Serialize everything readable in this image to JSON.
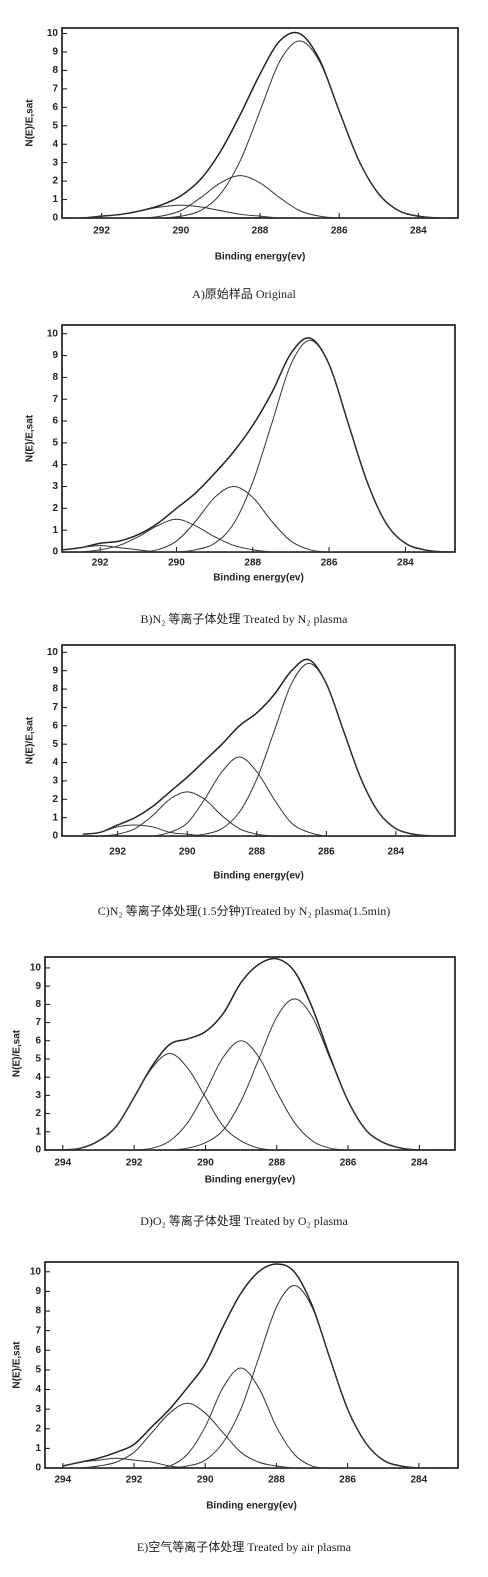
{
  "chart_data": [
    {
      "type": "line",
      "caption": "A)原始样品 Original",
      "xlabel": "Binding energy(ev)",
      "ylabel": "N(E)/E,sat",
      "xlim": [
        293,
        283
      ],
      "xticks": [
        292,
        290,
        288,
        286,
        284
      ],
      "ylim": [
        0,
        10.3
      ],
      "yticks": [
        0,
        1,
        2,
        3,
        4,
        5,
        6,
        7,
        8,
        9,
        10
      ],
      "x": [
        293,
        292.5,
        292,
        291.5,
        291,
        290.5,
        290,
        289.5,
        289,
        288.5,
        288,
        287.5,
        287,
        286.5,
        286,
        285.5,
        285,
        284.5,
        284,
        283.5,
        283
      ],
      "series": [
        {
          "color": "#222222",
          "values": [
            0,
            0,
            0.1,
            0.2,
            0.4,
            0.7,
            1.2,
            2.1,
            3.6,
            5.6,
            7.8,
            9.6,
            10.0,
            8.6,
            5.8,
            3.1,
            1.3,
            0.4,
            0.1,
            0,
            0
          ]
        },
        {
          "color": "#333333",
          "values": [
            0,
            0,
            0,
            0,
            0,
            0,
            0.1,
            0.4,
            1.3,
            3.1,
            5.8,
            8.5,
            9.6,
            8.5,
            5.8,
            3.1,
            1.3,
            0.4,
            0.1,
            0,
            0
          ]
        },
        {
          "color": "#333333",
          "values": [
            0,
            0,
            0,
            0,
            0,
            0.1,
            0.4,
            1.1,
            1.9,
            2.3,
            1.9,
            1.1,
            0.4,
            0.1,
            0,
            0,
            0,
            0,
            0,
            0,
            0
          ]
        },
        {
          "color": "#333333",
          "values": [
            0,
            0,
            0.1,
            0.2,
            0.4,
            0.6,
            0.7,
            0.6,
            0.4,
            0.2,
            0.1,
            0,
            0,
            0,
            0,
            0,
            0,
            0,
            0,
            0,
            0
          ]
        }
      ]
    },
    {
      "type": "line",
      "caption": "B)N₂ 等离子体处理 Treated by N₂ plasma",
      "xlabel": "Binding energy(ev)",
      "ylabel": "N(E)/E,sat",
      "xlim": [
        293,
        282.7
      ],
      "xticks": [
        292,
        290,
        288,
        286,
        284
      ],
      "ylim": [
        0,
        10.4
      ],
      "yticks": [
        0,
        1,
        2,
        3,
        4,
        5,
        6,
        7,
        8,
        9,
        10
      ],
      "x": [
        293,
        292.5,
        292,
        291.5,
        291,
        290.5,
        290,
        289.5,
        289,
        288.5,
        288,
        287.5,
        287,
        286.5,
        286,
        285.5,
        285,
        284.5,
        284,
        283.5,
        283
      ],
      "series": [
        {
          "color": "#222222",
          "values": [
            0.1,
            0.2,
            0.4,
            0.5,
            0.8,
            1.3,
            2.0,
            2.7,
            3.6,
            4.6,
            5.8,
            7.3,
            9.1,
            9.8,
            8.6,
            5.9,
            3.2,
            1.3,
            0.4,
            0.1,
            0
          ]
        },
        {
          "color": "#333333",
          "values": [
            0,
            0,
            0,
            0,
            0,
            0,
            0,
            0.1,
            0.4,
            1.3,
            3.2,
            5.9,
            8.6,
            9.7,
            8.6,
            5.9,
            3.2,
            1.3,
            0.4,
            0.1,
            0
          ]
        },
        {
          "color": "#333333",
          "values": [
            0,
            0,
            0,
            0,
            0,
            0.1,
            0.5,
            1.4,
            2.5,
            3.0,
            2.5,
            1.4,
            0.5,
            0.1,
            0,
            0,
            0,
            0,
            0,
            0,
            0
          ]
        },
        {
          "color": "#333333",
          "values": [
            0,
            0,
            0.1,
            0.3,
            0.7,
            1.2,
            1.5,
            1.2,
            0.7,
            0.3,
            0.1,
            0,
            0,
            0,
            0,
            0,
            0,
            0,
            0,
            0,
            0
          ]
        },
        {
          "color": "#333333",
          "values": [
            0.1,
            0.2,
            0.3,
            0.2,
            0.1,
            0,
            0,
            0,
            0,
            0,
            0,
            0,
            0,
            0,
            0,
            0,
            0,
            0,
            0,
            0,
            0
          ]
        }
      ]
    },
    {
      "type": "line",
      "caption": "C)N₂ 等离子体处理(1.5分钟)Treated by N₂ plasma(1.5min)",
      "xlabel": "Binding energy(ev)",
      "ylabel": "N(E)/E,sat",
      "xlim": [
        293.6,
        282.3
      ],
      "xticks": [
        292,
        290,
        288,
        286,
        284
      ],
      "ylim": [
        0,
        10.4
      ],
      "yticks": [
        0,
        1,
        2,
        3,
        4,
        5,
        6,
        7,
        8,
        9,
        10
      ],
      "x": [
        293,
        292.5,
        292,
        291.5,
        291,
        290.5,
        290,
        289.5,
        289,
        288.5,
        288,
        287.5,
        287,
        286.5,
        286,
        285.5,
        285,
        284.5,
        284,
        283.5,
        283
      ],
      "series": [
        {
          "color": "#222222",
          "values": [
            0.1,
            0.2,
            0.6,
            1.0,
            1.6,
            2.4,
            3.2,
            4.1,
            5.0,
            6.0,
            6.7,
            7.7,
            9.0,
            9.6,
            8.3,
            5.7,
            3.1,
            1.3,
            0.4,
            0.1,
            0
          ]
        },
        {
          "color": "#333333",
          "values": [
            0,
            0,
            0,
            0,
            0,
            0,
            0,
            0.1,
            0.4,
            1.3,
            3.1,
            5.7,
            8.3,
            9.4,
            8.3,
            5.7,
            3.1,
            1.3,
            0.4,
            0.1,
            0
          ]
        },
        {
          "color": "#333333",
          "values": [
            0,
            0,
            0,
            0,
            0,
            0.2,
            0.7,
            2.0,
            3.5,
            4.3,
            3.5,
            2.0,
            0.7,
            0.2,
            0,
            0,
            0,
            0,
            0,
            0,
            0
          ]
        },
        {
          "color": "#333333",
          "values": [
            0,
            0,
            0.1,
            0.4,
            1.1,
            2.0,
            2.4,
            2.0,
            1.1,
            0.4,
            0.1,
            0,
            0,
            0,
            0,
            0,
            0,
            0,
            0,
            0,
            0
          ]
        },
        {
          "color": "#333333",
          "values": [
            0.1,
            0.2,
            0.5,
            0.6,
            0.5,
            0.2,
            0.1,
            0,
            0,
            0,
            0,
            0,
            0,
            0,
            0,
            0,
            0,
            0,
            0,
            0,
            0
          ]
        }
      ]
    },
    {
      "type": "line",
      "caption": "D)O₂ 等离子体处理 Treated by O₂ plasma",
      "xlabel": "Binding energy(ev)",
      "ylabel": "N(E)/E,sat",
      "xlim": [
        294.5,
        283
      ],
      "xticks": [
        294,
        292,
        290,
        288,
        286,
        284
      ],
      "ylim": [
        0,
        10.6
      ],
      "yticks": [
        0,
        1,
        2,
        3,
        4,
        5,
        6,
        7,
        8,
        9,
        10
      ],
      "x": [
        294,
        293.5,
        293,
        292.5,
        292,
        291.5,
        291,
        290.5,
        290,
        289.5,
        289,
        288.5,
        288,
        287.5,
        287,
        286.5,
        286,
        285.5,
        285,
        284.5,
        284,
        283.5,
        283
      ],
      "series": [
        {
          "color": "#222222",
          "values": [
            0,
            0.1,
            0.5,
            1.3,
            2.9,
            4.6,
            5.8,
            6.1,
            6.5,
            7.5,
            9.2,
            10.2,
            10.5,
            9.8,
            7.8,
            5.1,
            2.7,
            1.1,
            0.4,
            0.1,
            0,
            0,
            0
          ]
        },
        {
          "color": "#333333",
          "values": [
            0,
            0,
            0,
            0,
            0,
            0,
            0,
            0.1,
            0.4,
            1.1,
            2.7,
            5.0,
            7.3,
            8.3,
            7.3,
            5.0,
            2.7,
            1.1,
            0.4,
            0.1,
            0,
            0,
            0
          ]
        },
        {
          "color": "#333333",
          "values": [
            0,
            0,
            0,
            0,
            0,
            0.1,
            0.5,
            1.5,
            3.2,
            5.1,
            6.0,
            5.1,
            3.2,
            1.5,
            0.5,
            0.1,
            0,
            0,
            0,
            0,
            0,
            0,
            0
          ]
        },
        {
          "color": "#333333",
          "values": [
            0,
            0.1,
            0.5,
            1.3,
            2.9,
            4.5,
            5.3,
            4.5,
            2.9,
            1.3,
            0.5,
            0.1,
            0,
            0,
            0,
            0,
            0,
            0,
            0,
            0,
            0,
            0,
            0
          ]
        }
      ]
    },
    {
      "type": "line",
      "caption": "E)空气等离子体处理 Treated by air plasma",
      "xlabel": "Binding energy(ev)",
      "ylabel": "N(E)/E,sat",
      "xlim": [
        294.5,
        282.9
      ],
      "xticks": [
        294,
        292,
        290,
        288,
        286,
        284
      ],
      "ylim": [
        0,
        10.5
      ],
      "yticks": [
        0,
        1,
        2,
        3,
        4,
        5,
        6,
        7,
        8,
        9,
        10
      ],
      "x": [
        294,
        293.5,
        293,
        292.5,
        292,
        291.5,
        291,
        290.5,
        290,
        289.5,
        289,
        288.5,
        288,
        287.5,
        287,
        286.5,
        286,
        285.5,
        285,
        284.5,
        284,
        283.5,
        283
      ],
      "series": [
        {
          "color": "#222222",
          "values": [
            0.1,
            0.3,
            0.5,
            0.8,
            1.2,
            2.1,
            3.0,
            4.1,
            5.3,
            7.2,
            8.9,
            10.0,
            10.4,
            10.0,
            8.3,
            5.6,
            3.0,
            1.3,
            0.4,
            0.1,
            0,
            0,
            0
          ]
        },
        {
          "color": "#333333",
          "values": [
            0,
            0,
            0,
            0,
            0,
            0,
            0,
            0.1,
            0.4,
            1.3,
            3.0,
            5.6,
            8.2,
            9.3,
            8.2,
            5.6,
            3.0,
            1.3,
            0.4,
            0.1,
            0,
            0,
            0
          ]
        },
        {
          "color": "#333333",
          "values": [
            0,
            0,
            0,
            0,
            0,
            0,
            0.1,
            0.7,
            2.1,
            4.1,
            5.1,
            4.1,
            2.1,
            0.7,
            0.1,
            0,
            0,
            0,
            0,
            0,
            0,
            0,
            0
          ]
        },
        {
          "color": "#333333",
          "values": [
            0,
            0,
            0.1,
            0.3,
            0.8,
            1.8,
            2.8,
            3.3,
            2.8,
            1.8,
            0.8,
            0.3,
            0.1,
            0,
            0,
            0,
            0,
            0,
            0,
            0,
            0,
            0,
            0
          ]
        },
        {
          "color": "#333333",
          "values": [
            0.1,
            0.3,
            0.4,
            0.5,
            0.4,
            0.3,
            0.1,
            0,
            0,
            0,
            0,
            0,
            0,
            0,
            0,
            0,
            0,
            0,
            0,
            0,
            0,
            0,
            0
          ]
        }
      ]
    }
  ]
}
